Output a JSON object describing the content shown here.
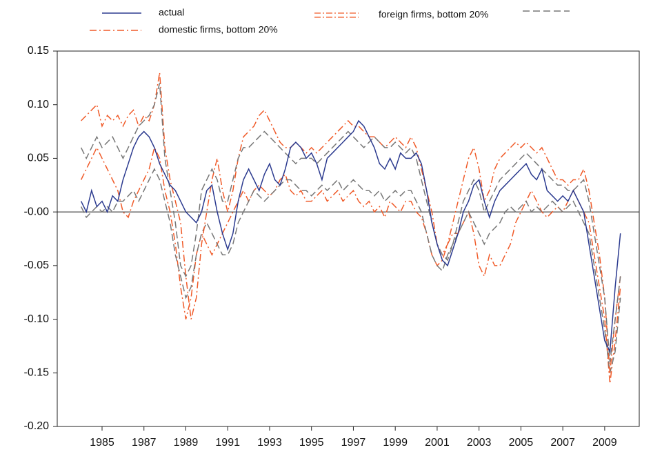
{
  "chart_data": {
    "type": "line",
    "x": [
      1984,
      1984.25,
      1984.5,
      1984.75,
      1985,
      1985.25,
      1985.5,
      1985.75,
      1986,
      1986.25,
      1986.5,
      1986.75,
      1987,
      1987.25,
      1987.5,
      1987.75,
      1988,
      1988.25,
      1988.5,
      1988.75,
      1989,
      1989.25,
      1989.5,
      1989.75,
      1990,
      1990.25,
      1990.5,
      1990.75,
      1991,
      1991.25,
      1991.5,
      1991.75,
      1992,
      1992.25,
      1992.5,
      1992.75,
      1993,
      1993.25,
      1993.5,
      1993.75,
      1994,
      1994.25,
      1994.5,
      1994.75,
      1995,
      1995.25,
      1995.5,
      1995.75,
      1996,
      1996.25,
      1996.5,
      1996.75,
      1997,
      1997.25,
      1997.5,
      1997.75,
      1998,
      1998.25,
      1998.5,
      1998.75,
      1999,
      1999.25,
      1999.5,
      1999.75,
      2000,
      2000.25,
      2000.5,
      2000.75,
      2001,
      2001.25,
      2001.5,
      2001.75,
      2002,
      2002.25,
      2002.5,
      2002.75,
      2003,
      2003.25,
      2003.5,
      2003.75,
      2004,
      2004.25,
      2004.5,
      2004.75,
      2005,
      2005.25,
      2005.5,
      2005.75,
      2006,
      2006.25,
      2006.5,
      2006.75,
      2007,
      2007.25,
      2007.5,
      2007.75,
      2008,
      2008.25,
      2008.5,
      2008.75,
      2009,
      2009.25,
      2009.5,
      2009.75
    ],
    "series": [
      {
        "name": "actual",
        "color": "#2b3a8f",
        "dash": "solid",
        "values": [
          0.01,
          0.0,
          0.02,
          0.005,
          0.01,
          0.0,
          0.015,
          0.01,
          0.03,
          0.045,
          0.06,
          0.07,
          0.075,
          0.07,
          0.06,
          0.045,
          0.035,
          0.025,
          0.02,
          0.01,
          0.0,
          -0.005,
          -0.01,
          0.0,
          0.02,
          0.025,
          0.0,
          -0.02,
          -0.035,
          -0.02,
          0.01,
          0.03,
          0.04,
          0.03,
          0.02,
          0.035,
          0.045,
          0.03,
          0.025,
          0.04,
          0.06,
          0.065,
          0.06,
          0.05,
          0.055,
          0.045,
          0.03,
          0.05,
          0.055,
          0.06,
          0.065,
          0.07,
          0.075,
          0.085,
          0.08,
          0.07,
          0.06,
          0.045,
          0.04,
          0.05,
          0.04,
          0.055,
          0.05,
          0.05,
          0.055,
          0.045,
          0.02,
          -0.01,
          -0.03,
          -0.045,
          -0.05,
          -0.035,
          -0.02,
          0.0,
          0.01,
          0.025,
          0.03,
          0.01,
          -0.005,
          0.01,
          0.02,
          0.025,
          0.03,
          0.035,
          0.04,
          0.045,
          0.035,
          0.03,
          0.04,
          0.02,
          0.015,
          0.01,
          0.015,
          0.01,
          0.02,
          0.01,
          0.0,
          -0.03,
          -0.06,
          -0.09,
          -0.12,
          -0.13,
          -0.07,
          -0.02
        ]
      },
      {
        "name": "domestic firms, bottom 20%",
        "color": "#f05a28",
        "dash": "dash-dot",
        "values": [
          0.085,
          0.09,
          0.095,
          0.1,
          0.08,
          0.09,
          0.085,
          0.09,
          0.08,
          0.09,
          0.095,
          0.08,
          0.09,
          0.085,
          0.1,
          0.13,
          0.06,
          0.03,
          0.01,
          -0.01,
          -0.06,
          -0.1,
          -0.08,
          -0.03,
          0.0,
          0.03,
          0.05,
          0.02,
          0.0,
          0.02,
          0.05,
          0.07,
          0.075,
          0.08,
          0.09,
          0.095,
          0.085,
          0.075,
          0.065,
          0.06,
          0.06,
          0.065,
          0.06,
          0.055,
          0.06,
          0.055,
          0.06,
          0.065,
          0.07,
          0.075,
          0.08,
          0.085,
          0.08,
          0.08,
          0.075,
          0.07,
          0.07,
          0.065,
          0.06,
          0.065,
          0.07,
          0.065,
          0.06,
          0.07,
          0.06,
          0.04,
          0.02,
          0.0,
          -0.03,
          -0.04,
          -0.03,
          -0.01,
          0.01,
          0.03,
          0.05,
          0.06,
          0.04,
          0.01,
          0.02,
          0.04,
          0.05,
          0.055,
          0.06,
          0.065,
          0.06,
          0.065,
          0.06,
          0.055,
          0.06,
          0.05,
          0.04,
          0.03,
          0.03,
          0.025,
          0.03,
          0.03,
          0.04,
          0.02,
          -0.01,
          -0.04,
          -0.08,
          -0.15,
          -0.1,
          -0.06
        ]
      },
      {
        "color": "#f05a28",
        "dash": "dash-dot",
        "values": [
          0.03,
          0.04,
          0.05,
          0.06,
          0.05,
          0.04,
          0.03,
          0.02,
          0.0,
          -0.005,
          0.01,
          0.02,
          0.03,
          0.04,
          0.06,
          0.05,
          0.02,
          0.0,
          -0.03,
          -0.07,
          -0.1,
          -0.08,
          -0.04,
          -0.02,
          -0.03,
          -0.04,
          -0.03,
          -0.02,
          -0.01,
          0.0,
          0.01,
          0.02,
          0.01,
          0.02,
          0.025,
          0.02,
          0.015,
          0.02,
          0.03,
          0.035,
          0.02,
          0.015,
          0.02,
          0.01,
          0.01,
          0.015,
          0.02,
          0.01,
          0.015,
          0.02,
          0.01,
          0.015,
          0.02,
          0.01,
          0.005,
          0.01,
          0.0,
          0.005,
          -0.005,
          0.01,
          0.005,
          0.0,
          0.01,
          0.01,
          0.0,
          -0.005,
          -0.02,
          -0.04,
          -0.05,
          -0.045,
          -0.03,
          -0.02,
          -0.02,
          -0.01,
          0.0,
          -0.02,
          -0.05,
          -0.06,
          -0.04,
          -0.05,
          -0.05,
          -0.04,
          -0.03,
          -0.01,
          0.0,
          0.01,
          0.02,
          0.01,
          0.0,
          -0.005,
          0.0,
          0.005,
          0.0,
          0.01,
          0.02,
          0.01,
          0.0,
          -0.01,
          -0.04,
          -0.07,
          -0.1,
          -0.16,
          -0.12,
          -0.07
        ]
      },
      {
        "name": "foreign firms, bottom 20%",
        "color": "#777777",
        "dash": "dash",
        "values": [
          0.06,
          0.05,
          0.06,
          0.07,
          0.06,
          0.065,
          0.07,
          0.06,
          0.05,
          0.06,
          0.07,
          0.08,
          0.085,
          0.09,
          0.1,
          0.12,
          0.05,
          0.02,
          -0.01,
          -0.05,
          -0.06,
          -0.05,
          -0.02,
          0.02,
          0.03,
          0.04,
          0.03,
          0.01,
          0.01,
          0.03,
          0.05,
          0.06,
          0.06,
          0.065,
          0.07,
          0.075,
          0.07,
          0.065,
          0.06,
          0.055,
          0.05,
          0.045,
          0.05,
          0.05,
          0.05,
          0.045,
          0.05,
          0.055,
          0.06,
          0.065,
          0.07,
          0.075,
          0.07,
          0.065,
          0.06,
          0.065,
          0.07,
          0.065,
          0.06,
          0.06,
          0.065,
          0.06,
          0.055,
          0.06,
          0.05,
          0.03,
          0.01,
          -0.01,
          -0.03,
          -0.04,
          -0.045,
          -0.03,
          -0.01,
          0.01,
          0.02,
          0.03,
          0.02,
          0.0,
          0.01,
          0.02,
          0.03,
          0.035,
          0.04,
          0.045,
          0.05,
          0.055,
          0.05,
          0.045,
          0.04,
          0.035,
          0.03,
          0.025,
          0.025,
          0.02,
          0.02,
          0.025,
          0.03,
          0.01,
          -0.02,
          -0.05,
          -0.08,
          -0.14,
          -0.1,
          -0.06
        ]
      },
      {
        "color": "#777777",
        "dash": "dash",
        "values": [
          0.005,
          -0.005,
          0.0,
          0.005,
          0.0,
          0.005,
          0.0,
          0.01,
          0.01,
          0.015,
          0.02,
          0.01,
          0.02,
          0.03,
          0.04,
          0.03,
          0.01,
          -0.01,
          -0.04,
          -0.06,
          -0.08,
          -0.07,
          -0.04,
          -0.02,
          -0.01,
          -0.02,
          -0.03,
          -0.04,
          -0.04,
          -0.03,
          -0.01,
          0.0,
          0.01,
          0.02,
          0.015,
          0.01,
          0.015,
          0.02,
          0.025,
          0.03,
          0.03,
          0.025,
          0.02,
          0.02,
          0.015,
          0.02,
          0.025,
          0.02,
          0.025,
          0.03,
          0.02,
          0.025,
          0.03,
          0.025,
          0.02,
          0.02,
          0.015,
          0.02,
          0.01,
          0.015,
          0.02,
          0.015,
          0.02,
          0.02,
          0.01,
          0.0,
          -0.02,
          -0.04,
          -0.05,
          -0.055,
          -0.04,
          -0.03,
          -0.02,
          -0.01,
          0.0,
          -0.01,
          -0.02,
          -0.03,
          -0.02,
          -0.015,
          -0.01,
          0.0,
          0.005,
          0.0,
          0.005,
          0.01,
          0.0,
          0.005,
          0.0,
          0.005,
          0.01,
          0.005,
          0.0,
          0.005,
          0.01,
          0.0,
          -0.01,
          -0.02,
          -0.05,
          -0.08,
          -0.11,
          -0.15,
          -0.13,
          -0.08
        ]
      }
    ],
    "xlim": [
      1982.86,
      2010.65
    ],
    "xticks": [
      1985,
      1987,
      1989,
      1991,
      1993,
      1995,
      1997,
      1999,
      2001,
      2003,
      2005,
      2007,
      2009
    ],
    "ylim": [
      -0.2,
      0.15
    ],
    "yticks": [
      {
        "value": -0.2,
        "label": "-0.20"
      },
      {
        "value": -0.15,
        "label": "-0.15"
      },
      {
        "value": -0.1,
        "label": "-0.10"
      },
      {
        "value": -0.05,
        "label": "-0.05"
      },
      {
        "value": 0,
        "label": "-0.00"
      },
      {
        "value": 0.05,
        "label": "0.05"
      },
      {
        "value": 0.1,
        "label": "0.10"
      },
      {
        "value": 0.15,
        "label": "0.15"
      }
    ],
    "zero_line": true
  }
}
